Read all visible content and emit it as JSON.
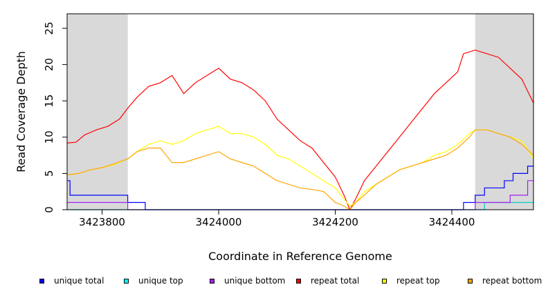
{
  "chart_data": {
    "type": "line",
    "title": "",
    "xlabel": "Coordinate in Reference Genome",
    "ylabel": "Read Coverage Depth",
    "xlim": [
      3423740,
      3424540
    ],
    "ylim": [
      0,
      27
    ],
    "x_ticks": [
      3423800,
      3424000,
      3424200,
      3424400
    ],
    "y_ticks": [
      0,
      5,
      10,
      15,
      20,
      25
    ],
    "grid": false,
    "legend_position": "bottom",
    "shaded_regions": [
      {
        "x_start": 3423740,
        "x_end": 3423844,
        "color": "#d9d9d9"
      },
      {
        "x_start": 3424440,
        "x_end": 3424540,
        "color": "#d9d9d9"
      }
    ],
    "series": [
      {
        "name": "unique total",
        "color": "#0000ff",
        "style": "step",
        "x": [
          3423740,
          3423745,
          3423844,
          3423874,
          3424420,
          3424440,
          3424456,
          3424490,
          3424505,
          3424530,
          3424540
        ],
        "y": [
          4,
          2,
          1,
          0,
          1,
          2,
          3,
          4,
          5,
          6,
          6
        ]
      },
      {
        "name": "unique top",
        "color": "#00cdcd",
        "style": "step",
        "x": [
          3423740,
          3424456,
          3424540
        ],
        "y": [
          0,
          1,
          1
        ]
      },
      {
        "name": "unique bottom",
        "color": "#a020f0",
        "style": "step",
        "x": [
          3423740,
          3423745,
          3423844,
          3424440,
          3424500,
          3424530,
          3424540
        ],
        "y": [
          1,
          1,
          0,
          1,
          2,
          4,
          4
        ]
      },
      {
        "name": "repeat total",
        "color": "#ff0000",
        "style": "line",
        "x": [
          3423740,
          3423755,
          3423770,
          3423790,
          3423810,
          3423830,
          3423844,
          3423860,
          3423880,
          3423900,
          3423910,
          3423920,
          3423940,
          3423960,
          3423980,
          3424000,
          3424020,
          3424040,
          3424060,
          3424080,
          3424100,
          3424120,
          3424140,
          3424160,
          3424180,
          3424200,
          3424215,
          3424225,
          3424235,
          3424250,
          3424270,
          3424290,
          3424310,
          3424330,
          3424350,
          3424370,
          3424390,
          3424410,
          3424420,
          3424440,
          3424460,
          3424480,
          3424500,
          3424520,
          3424540
        ],
        "y": [
          9.2,
          9.3,
          10.3,
          11.0,
          11.5,
          12.5,
          14.0,
          15.5,
          17.0,
          17.5,
          18.0,
          18.5,
          16.0,
          17.5,
          18.5,
          19.5,
          18.0,
          17.5,
          16.5,
          15.0,
          12.5,
          11.0,
          9.5,
          8.5,
          6.5,
          4.5,
          2.0,
          0.0,
          1.5,
          4.0,
          6.0,
          8.0,
          10.0,
          12.0,
          14.0,
          16.0,
          17.5,
          19.0,
          21.5,
          22.0,
          21.5,
          21.0,
          19.5,
          18.0,
          14.7
        ]
      },
      {
        "name": "repeat top",
        "color": "#ffff00",
        "style": "line",
        "x": [
          3423740,
          3423760,
          3423780,
          3423800,
          3423820,
          3423844,
          3423860,
          3423880,
          3423900,
          3423920,
          3423940,
          3423960,
          3423980,
          3424000,
          3424020,
          3424040,
          3424060,
          3424080,
          3424100,
          3424120,
          3424140,
          3424160,
          3424180,
          3424200,
          3424215,
          3424225,
          3424235,
          3424250,
          3424270,
          3424290,
          3424310,
          3424330,
          3424350,
          3424370,
          3424390,
          3424410,
          3424430,
          3424440,
          3424460,
          3424480,
          3424500,
          3424520,
          3424540
        ],
        "y": [
          4.8,
          5.0,
          5.5,
          5.8,
          6.2,
          7.0,
          8.0,
          9.0,
          9.5,
          9.0,
          9.5,
          10.5,
          11.0,
          11.5,
          10.5,
          10.5,
          10.0,
          9.0,
          7.5,
          7.0,
          6.0,
          5.0,
          4.0,
          3.0,
          1.5,
          0.5,
          1.0,
          2.5,
          3.5,
          4.5,
          5.5,
          6.0,
          6.5,
          7.5,
          8.0,
          9.0,
          10.5,
          11.0,
          11.0,
          10.5,
          10.0,
          9.5,
          7.0
        ]
      },
      {
        "name": "repeat bottom",
        "color": "#ffa500",
        "style": "line",
        "x": [
          3423740,
          3423760,
          3423780,
          3423800,
          3423820,
          3423844,
          3423860,
          3423880,
          3423900,
          3423920,
          3423940,
          3423960,
          3423980,
          3424000,
          3424020,
          3424040,
          3424060,
          3424080,
          3424100,
          3424120,
          3424140,
          3424160,
          3424180,
          3424200,
          3424215,
          3424225,
          3424235,
          3424250,
          3424270,
          3424290,
          3424310,
          3424330,
          3424350,
          3424370,
          3424390,
          3424410,
          3424430,
          3424440,
          3424460,
          3424480,
          3424500,
          3424520,
          3424540
        ],
        "y": [
          4.8,
          5.0,
          5.5,
          5.8,
          6.3,
          7.0,
          8.0,
          8.5,
          8.5,
          6.5,
          6.5,
          7.0,
          7.5,
          8.0,
          7.0,
          6.5,
          6.0,
          5.0,
          4.0,
          3.5,
          3.0,
          2.8,
          2.5,
          1.0,
          0.5,
          0.0,
          1.0,
          2.0,
          3.5,
          4.5,
          5.5,
          6.0,
          6.5,
          7.0,
          7.5,
          8.5,
          10.0,
          11.0,
          11.0,
          10.5,
          10.0,
          9.0,
          7.5
        ]
      }
    ],
    "legend": [
      {
        "label": "unique total",
        "color": "#0000ff"
      },
      {
        "label": "unique top",
        "color": "#00ffff"
      },
      {
        "label": "unique bottom",
        "color": "#a020f0"
      },
      {
        "label": "repeat total",
        "color": "#ff0000"
      },
      {
        "label": "repeat top",
        "color": "#ffff00"
      },
      {
        "label": "repeat bottom",
        "color": "#ffa500"
      }
    ]
  }
}
